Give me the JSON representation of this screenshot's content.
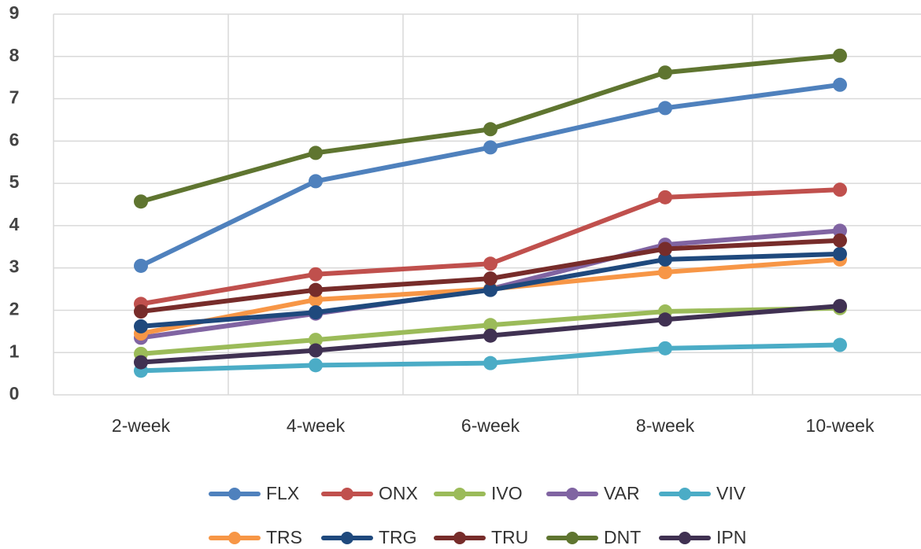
{
  "chart_data": {
    "type": "line",
    "categories": [
      "2-week",
      "4-week",
      "6-week",
      "8-week",
      "10-week"
    ],
    "series": [
      {
        "name": "FLX",
        "color": "#4f81bd",
        "values": [
          3.05,
          5.05,
          5.85,
          6.78,
          7.33
        ]
      },
      {
        "name": "ONX",
        "color": "#c0504d",
        "values": [
          2.15,
          2.85,
          3.1,
          4.67,
          4.85
        ]
      },
      {
        "name": "IVO",
        "color": "#9bbb59",
        "values": [
          0.97,
          1.3,
          1.65,
          1.97,
          2.05
        ]
      },
      {
        "name": "VAR",
        "color": "#8064a2",
        "values": [
          1.35,
          1.92,
          2.5,
          3.55,
          3.88
        ]
      },
      {
        "name": "VIV",
        "color": "#4bacc6",
        "values": [
          0.57,
          0.7,
          0.75,
          1.1,
          1.18
        ]
      },
      {
        "name": "TRS",
        "color": "#f79646",
        "values": [
          1.45,
          2.25,
          2.5,
          2.9,
          3.2
        ]
      },
      {
        "name": "TRG",
        "color": "#1f497d",
        "values": [
          1.62,
          1.95,
          2.48,
          3.2,
          3.33
        ]
      },
      {
        "name": "TRU",
        "color": "#772c2a",
        "values": [
          1.97,
          2.48,
          2.75,
          3.45,
          3.65
        ]
      },
      {
        "name": "DNT",
        "color": "#5f7530",
        "values": [
          4.57,
          5.72,
          6.28,
          7.62,
          8.02
        ]
      },
      {
        "name": "IPN",
        "color": "#403152",
        "values": [
          0.77,
          1.05,
          1.4,
          1.78,
          2.1
        ]
      }
    ],
    "ylim": [
      0,
      9
    ],
    "yticks": [
      0,
      1,
      2,
      3,
      4,
      5,
      6,
      7,
      8,
      9
    ],
    "grid": true,
    "legend": "bottom"
  }
}
